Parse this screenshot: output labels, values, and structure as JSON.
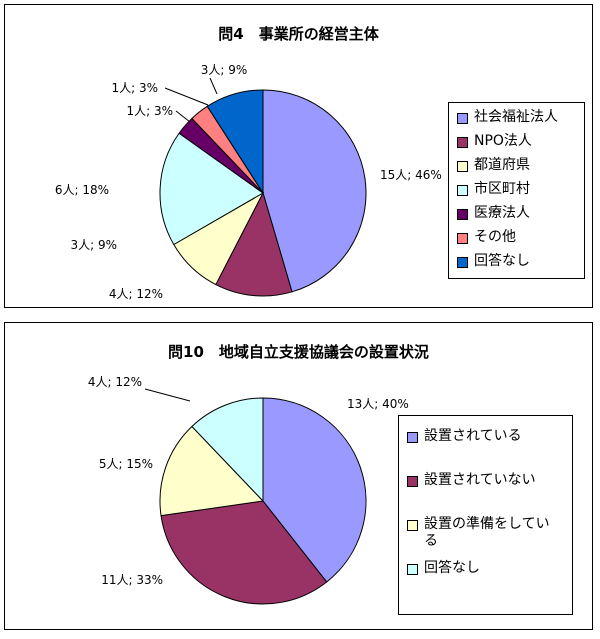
{
  "chart_data": [
    {
      "type": "pie",
      "title": "問4　事業所の経営主体",
      "slices": [
        {
          "label": "社会福祉法人",
          "count": 15,
          "percent": 46,
          "data_label": "15人; 46%",
          "color": "#9999ff"
        },
        {
          "label": "NPO法人",
          "count": 4,
          "percent": 12,
          "data_label": "4人; 12%",
          "color": "#993366"
        },
        {
          "label": "都道府県",
          "count": 3,
          "percent": 9,
          "data_label": "3人; 9%",
          "color": "#ffffcc"
        },
        {
          "label": "市区町村",
          "count": 6,
          "percent": 18,
          "data_label": "6人; 18%",
          "color": "#ccffff"
        },
        {
          "label": "医療法人",
          "count": 1,
          "percent": 3,
          "data_label": "1人; 3%",
          "color": "#660066"
        },
        {
          "label": "その他",
          "count": 1,
          "percent": 3,
          "data_label": "1人; 3%",
          "color": "#ff8080"
        },
        {
          "label": "回答なし",
          "count": 3,
          "percent": 9,
          "data_label": "3人; 9%",
          "color": "#0066cc"
        }
      ],
      "legend_position": "right"
    },
    {
      "type": "pie",
      "title": "問10　地域自立支援協議会の設置状況",
      "slices": [
        {
          "label": "設置されている",
          "count": 13,
          "percent": 40,
          "data_label": "13人; 40%",
          "color": "#9999ff"
        },
        {
          "label": "設置されていない",
          "count": 11,
          "percent": 33,
          "data_label": "11人; 33%",
          "color": "#993366"
        },
        {
          "label": "設置の準備をしている",
          "count": 5,
          "percent": 15,
          "data_label": "5人; 15%",
          "color": "#ffffcc"
        },
        {
          "label": "回答なし",
          "count": 4,
          "percent": 12,
          "data_label": "4人; 12%",
          "color": "#ccffff"
        }
      ],
      "legend_position": "right"
    }
  ]
}
